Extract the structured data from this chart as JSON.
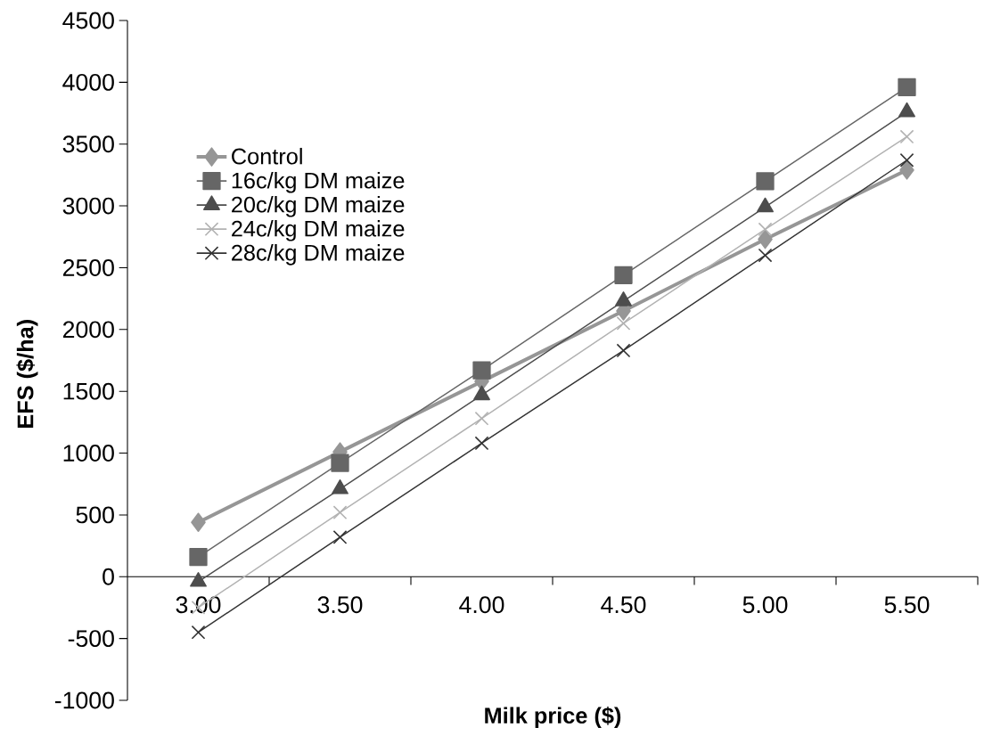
{
  "chart_data": {
    "type": "line",
    "xlabel": "Milk price ($)",
    "ylabel": "EFS ($/ha)",
    "categories": [
      "3.00",
      "3.50",
      "4.00",
      "4.50",
      "5.00",
      "5.50"
    ],
    "series": [
      {
        "name": "Control",
        "color": "#969696",
        "marker": "diamond",
        "values": [
          440,
          1010,
          1580,
          2150,
          2730,
          3290
        ]
      },
      {
        "name": "16c/kg DM maize",
        "color": "#666666",
        "marker": "square",
        "values": [
          160,
          920,
          1670,
          2440,
          3200,
          3960
        ]
      },
      {
        "name": "20c/kg DM maize",
        "color": "#4d4d4d",
        "marker": "triangle",
        "values": [
          -40,
          710,
          1470,
          2230,
          2990,
          3760
        ]
      },
      {
        "name": "24c/kg DM maize",
        "color": "#b2b2b2",
        "marker": "cross",
        "values": [
          -250,
          520,
          1280,
          2050,
          2810,
          3560
        ]
      },
      {
        "name": "28c/kg DM maize",
        "color": "#333333",
        "marker": "cross",
        "values": [
          -450,
          320,
          1080,
          1830,
          2600,
          3370
        ]
      }
    ],
    "ylim": [
      -1000,
      4500
    ],
    "yticks": [
      -1000,
      -500,
      0,
      500,
      1000,
      1500,
      2000,
      2500,
      3000,
      3500,
      4000,
      4500
    ],
    "legend": "top left",
    "grid": false,
    "line_style": "solid"
  }
}
